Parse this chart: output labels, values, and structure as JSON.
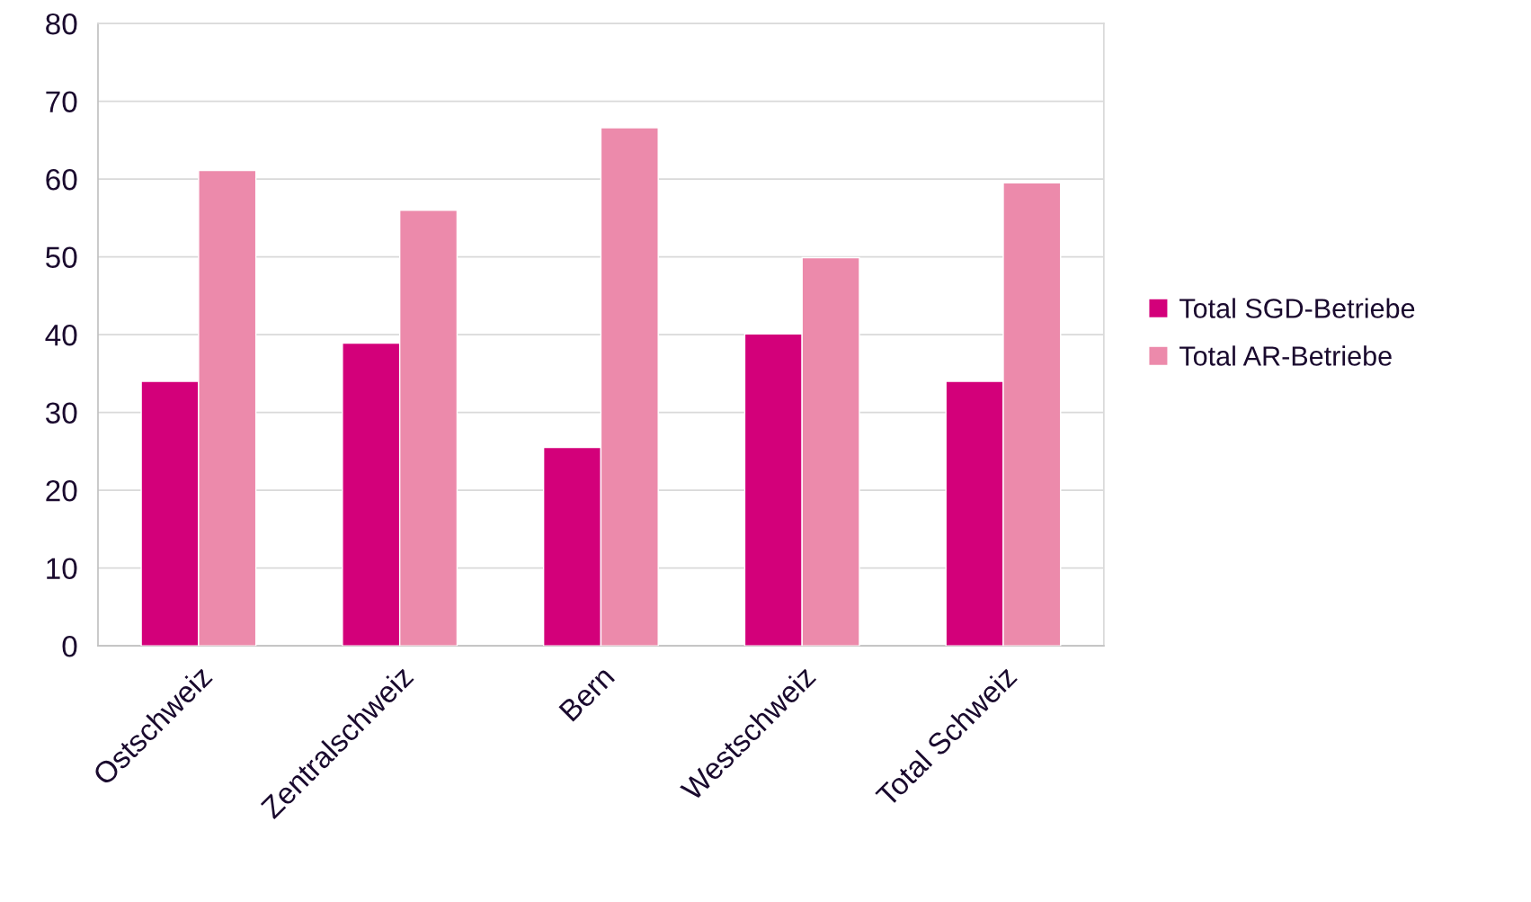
{
  "chart_data": {
    "type": "bar",
    "categories": [
      "Ostschweiz",
      "Zentralschweiz",
      "Bern",
      "Westschweiz",
      "Total Schweiz"
    ],
    "series": [
      {
        "name": "Total SGD-Betriebe",
        "color": "#d3007a",
        "values": [
          34.0,
          38.9,
          25.5,
          40.1,
          34.0
        ]
      },
      {
        "name": "Total AR-Betriebe",
        "color": "#ec8aab",
        "values": [
          61.1,
          56.0,
          66.6,
          49.9,
          59.5
        ]
      }
    ],
    "ylim": [
      0,
      80
    ],
    "yticks": [
      0,
      10,
      20,
      30,
      40,
      50,
      60,
      70,
      80
    ],
    "grid": "y",
    "legend": "right"
  }
}
